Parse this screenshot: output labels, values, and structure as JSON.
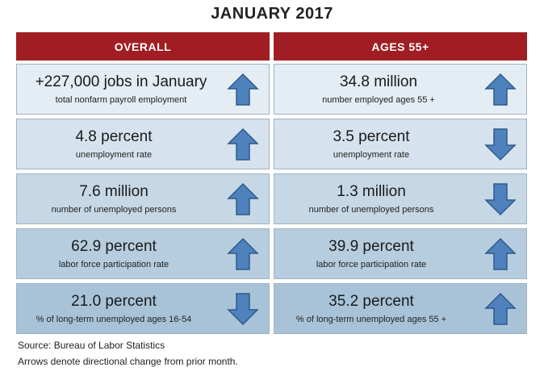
{
  "title": "JANUARY 2017",
  "headers": {
    "overall": "OVERALL",
    "ages55": "AGES 55+"
  },
  "rows": [
    {
      "overall": {
        "value": "+227,000 jobs in January",
        "label": "total nonfarm payroll employment",
        "direction": "up"
      },
      "ages55": {
        "value": "34.8 million",
        "label": "number employed ages 55 +",
        "direction": "up"
      }
    },
    {
      "overall": {
        "value": "4.8 percent",
        "label": "unemployment rate",
        "direction": "up"
      },
      "ages55": {
        "value": "3.5 percent",
        "label": "unemployment rate",
        "direction": "down"
      }
    },
    {
      "overall": {
        "value": "7.6 million",
        "label": "number of unemployed persons",
        "direction": "up"
      },
      "ages55": {
        "value": "1.3 million",
        "label": "number of unemployed persons",
        "direction": "down"
      }
    },
    {
      "overall": {
        "value": "62.9 percent",
        "label": "labor force participation rate",
        "direction": "up"
      },
      "ages55": {
        "value": "39.9 percent",
        "label": "labor force participation rate",
        "direction": "up"
      }
    },
    {
      "overall": {
        "value": "21.0 percent",
        "label": "% of long-term unemployed ages 16-54",
        "direction": "down"
      },
      "ages55": {
        "value": "35.2 percent",
        "label": "% of long-term unemployed ages 55 +",
        "direction": "up"
      }
    }
  ],
  "footer": {
    "source": "Source: Bureau of Labor Statistics",
    "note": "Arrows denote directional change from prior month."
  },
  "colors": {
    "header_bg": "#a01e23",
    "arrow_fill": "#4f81bd",
    "arrow_stroke": "#2f5a8a"
  }
}
